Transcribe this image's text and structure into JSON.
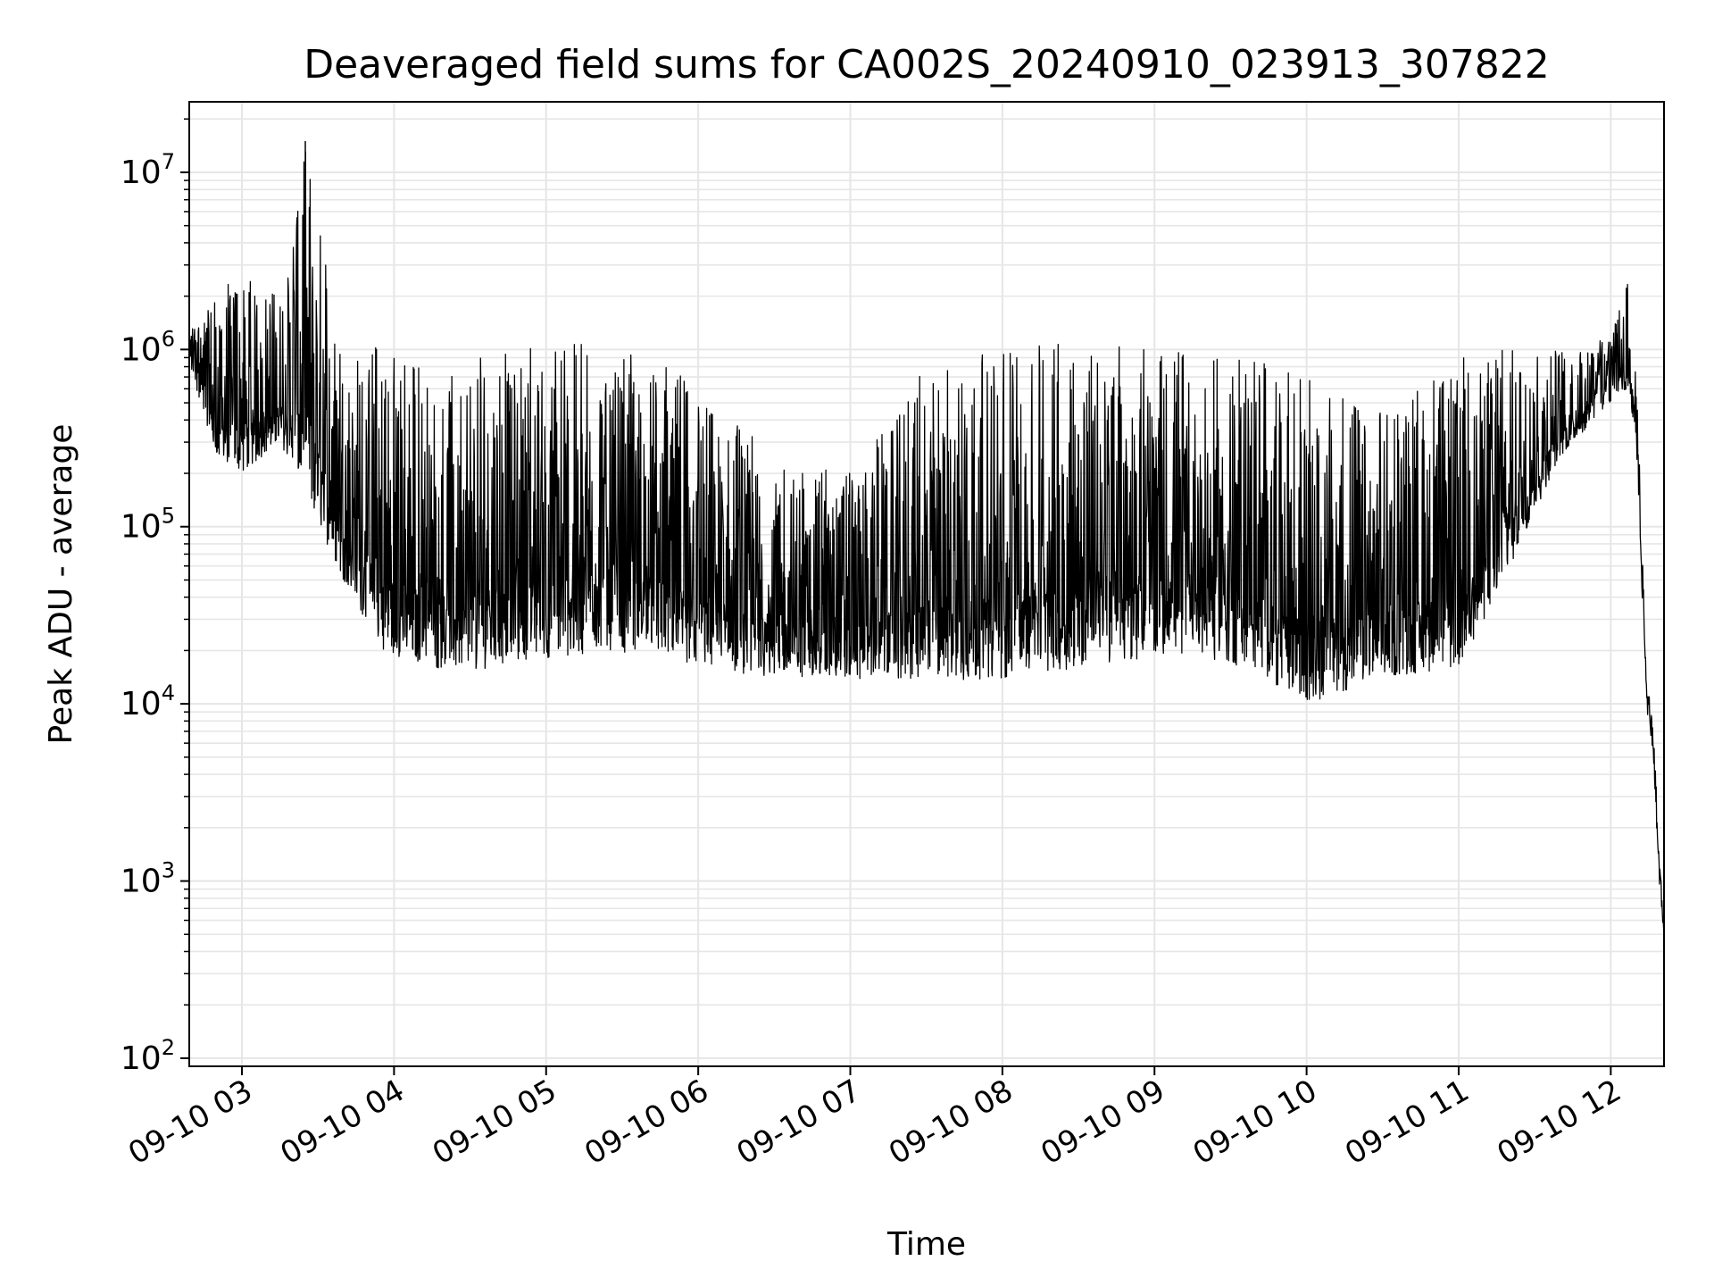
{
  "chart_data": {
    "type": "line",
    "title": "Deaveraged field sums for CA002S_20240910_023913_307822",
    "xlabel": "Time",
    "ylabel": "Peak ADU - average",
    "y_scale": "log",
    "ylim": [
      90,
      25000000
    ],
    "xlim": [
      "2024-09-10T02:39:13",
      "2024-09-10T12:21:00"
    ],
    "grid": true,
    "line_color": "#000000",
    "x_ticks": [
      {
        "t": "2024-09-10T03:00:00",
        "label": "09-10 03"
      },
      {
        "t": "2024-09-10T04:00:00",
        "label": "09-10 04"
      },
      {
        "t": "2024-09-10T05:00:00",
        "label": "09-10 05"
      },
      {
        "t": "2024-09-10T06:00:00",
        "label": "09-10 06"
      },
      {
        "t": "2024-09-10T07:00:00",
        "label": "09-10 07"
      },
      {
        "t": "2024-09-10T08:00:00",
        "label": "09-10 08"
      },
      {
        "t": "2024-09-10T09:00:00",
        "label": "09-10 09"
      },
      {
        "t": "2024-09-10T10:00:00",
        "label": "09-10 10"
      },
      {
        "t": "2024-09-10T11:00:00",
        "label": "09-10 11"
      },
      {
        "t": "2024-09-10T12:00:00",
        "label": "09-10 12"
      }
    ],
    "y_ticks": [
      {
        "value": 100,
        "base": "10",
        "exp": "2"
      },
      {
        "value": 1000,
        "base": "10",
        "exp": "3"
      },
      {
        "value": 10000,
        "base": "10",
        "exp": "4"
      },
      {
        "value": 100000,
        "base": "10",
        "exp": "5"
      },
      {
        "value": 1000000,
        "base": "10",
        "exp": "6"
      },
      {
        "value": 10000000,
        "base": "10",
        "exp": "7"
      }
    ],
    "series": [
      {
        "name": "",
        "note": "dense noisy signal; envelope (low / high) sampled over time",
        "envelope": [
          {
            "t": "2024-09-10T02:39:13",
            "low": 800000,
            "high": 1300000
          },
          {
            "t": "2024-09-10T02:50:00",
            "low": 250000,
            "high": 2200000
          },
          {
            "t": "2024-09-10T03:00:00",
            "low": 200000,
            "high": 2600000
          },
          {
            "t": "2024-09-10T03:15:00",
            "low": 300000,
            "high": 2000000
          },
          {
            "t": "2024-09-10T03:25:00",
            "low": 150000,
            "high": 15000000
          },
          {
            "t": "2024-09-10T03:40:00",
            "low": 50000,
            "high": 1000000
          },
          {
            "t": "2024-09-10T03:55:00",
            "low": 20000,
            "high": 1100000
          },
          {
            "t": "2024-09-10T04:20:00",
            "low": 15000,
            "high": 700000
          },
          {
            "t": "2024-09-10T04:40:00",
            "low": 16000,
            "high": 1000000
          },
          {
            "t": "2024-09-10T05:00:00",
            "low": 18000,
            "high": 1100000
          },
          {
            "t": "2024-09-10T05:40:00",
            "low": 20000,
            "high": 1050000
          },
          {
            "t": "2024-09-10T06:00:00",
            "low": 16000,
            "high": 600000
          },
          {
            "t": "2024-09-10T06:30:00",
            "low": 14000,
            "high": 250000
          },
          {
            "t": "2024-09-10T07:00:00",
            "low": 14000,
            "high": 200000
          },
          {
            "t": "2024-09-10T07:30:00",
            "low": 13000,
            "high": 800000
          },
          {
            "t": "2024-09-10T08:00:00",
            "low": 14000,
            "high": 1000000
          },
          {
            "t": "2024-09-10T08:30:00",
            "low": 16000,
            "high": 1100000
          },
          {
            "t": "2024-09-10T09:00:00",
            "low": 18000,
            "high": 1100000
          },
          {
            "t": "2024-09-10T09:30:00",
            "low": 17000,
            "high": 1000000
          },
          {
            "t": "2024-09-10T10:00:00",
            "low": 10000,
            "high": 700000
          },
          {
            "t": "2024-09-10T10:30:00",
            "low": 14000,
            "high": 450000
          },
          {
            "t": "2024-09-10T11:00:00",
            "low": 16000,
            "high": 900000
          },
          {
            "t": "2024-09-10T11:15:00",
            "low": 40000,
            "high": 1000000
          },
          {
            "t": "2024-09-10T11:40:00",
            "low": 250000,
            "high": 1000000
          },
          {
            "t": "2024-09-10T12:00:00",
            "low": 500000,
            "high": 1200000
          },
          {
            "t": "2024-09-10T12:07:00",
            "low": 600000,
            "high": 2500000
          },
          {
            "t": "2024-09-10T12:10:00",
            "low": 300000,
            "high": 1100000
          },
          {
            "t": "2024-09-10T12:14:00",
            "low": 10000,
            "high": 14000
          },
          {
            "t": "2024-09-10T12:17:00",
            "low": 4000,
            "high": 7500
          },
          {
            "t": "2024-09-10T12:19:00",
            "low": 1000,
            "high": 1500
          },
          {
            "t": "2024-09-10T12:21:00",
            "low": 450,
            "high": 600
          }
        ]
      }
    ]
  }
}
